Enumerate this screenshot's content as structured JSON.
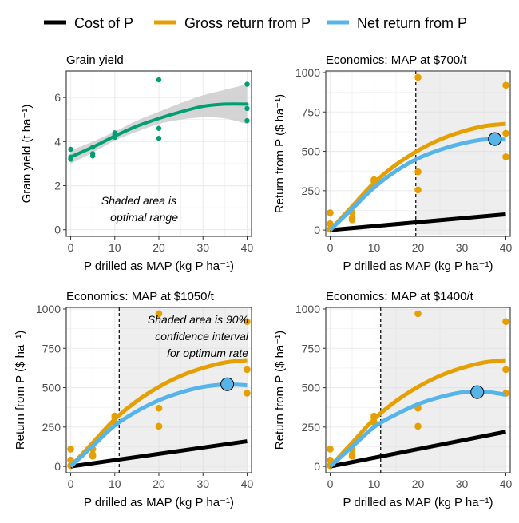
{
  "legend": {
    "items": [
      {
        "label": "Cost of P",
        "color": "#000000"
      },
      {
        "label": "Gross return from P",
        "color": "#E69F00"
      },
      {
        "label": "Net return from P",
        "color": "#56B4E9"
      }
    ]
  },
  "colors": {
    "cost": "#000000",
    "gross": "#E69F00",
    "net": "#56B4E9",
    "yield": "#009E73",
    "ribbon": "#cccccc",
    "panel_grid": "#ebebeb",
    "shade": "#d9d9d9"
  },
  "chart_data": [
    {
      "type": "scatter",
      "title": "Grain yield",
      "xlabel": "P drilled as MAP (kg P ha⁻¹)",
      "ylabel": "Grain yield (t ha⁻¹)",
      "xlim": [
        -1,
        41
      ],
      "ylim": [
        -0.3,
        7.2
      ],
      "xticks": [
        0,
        10,
        20,
        30,
        40
      ],
      "yticks": [
        0,
        2,
        4,
        6
      ],
      "grid": true,
      "points": {
        "x": [
          0,
          0,
          0,
          5,
          5,
          5,
          10,
          10,
          10,
          20,
          20,
          20,
          40,
          40,
          40
        ],
        "y": [
          3.65,
          3.3,
          3.2,
          3.75,
          3.45,
          3.35,
          4.4,
          4.3,
          4.2,
          6.8,
          4.6,
          4.15,
          6.6,
          5.5,
          4.95
        ]
      },
      "fit": {
        "x": [
          0,
          5,
          10,
          15,
          20,
          25,
          30,
          35,
          40
        ],
        "y": [
          3.3,
          3.75,
          4.25,
          4.7,
          5.05,
          5.35,
          5.6,
          5.7,
          5.7
        ]
      },
      "ribbon": {
        "x": [
          0,
          5,
          10,
          15,
          20,
          25,
          30,
          35,
          40
        ],
        "lower": [
          3.0,
          3.5,
          4.05,
          4.45,
          4.8,
          5.0,
          5.1,
          5.05,
          4.8
        ],
        "upper": [
          3.6,
          4.0,
          4.45,
          4.95,
          5.35,
          5.75,
          6.1,
          6.35,
          6.6
        ]
      },
      "annotation": [
        "Shaded area is",
        "optimal range"
      ]
    },
    {
      "type": "line",
      "title": "Economics: MAP at $700/t",
      "xlabel": "P drilled as MAP (kg P ha⁻¹)",
      "ylabel": "Return from P ($ ha⁻¹)",
      "xlim": [
        -1,
        41
      ],
      "ylim": [
        -40,
        1010
      ],
      "xticks": [
        0,
        10,
        20,
        30,
        40
      ],
      "yticks": [
        0,
        250,
        500,
        750,
        1000
      ],
      "grid": true,
      "shade_range": [
        19.5,
        40
      ],
      "vline": 19.5,
      "gross_points": {
        "x": [
          0,
          0,
          0,
          5,
          5,
          5,
          10,
          10,
          10,
          20,
          20,
          20,
          40,
          40,
          40
        ],
        "y": [
          110,
          40,
          5,
          110,
          75,
          65,
          320,
          310,
          280,
          970,
          370,
          255,
          920,
          615,
          465
        ]
      },
      "series": [
        {
          "name": "Cost of P",
          "x": [
            0,
            40
          ],
          "y": [
            0,
            100
          ]
        },
        {
          "name": "Gross return from P",
          "x": [
            0,
            5,
            10,
            15,
            20,
            25,
            30,
            35,
            40
          ],
          "y": [
            0,
            150,
            300,
            415,
            505,
            575,
            625,
            660,
            675
          ]
        },
        {
          "name": "Net return from P",
          "x": [
            0,
            5,
            10,
            15,
            20,
            25,
            30,
            35,
            40
          ],
          "y": [
            0,
            135,
            270,
            375,
            455,
            510,
            550,
            575,
            575
          ]
        }
      ],
      "optimum": {
        "x": 37.5,
        "y": 578
      }
    },
    {
      "type": "line",
      "title": "Economics: MAP at $1050/t",
      "xlabel": "P drilled as MAP (kg P ha⁻¹)",
      "ylabel": "Return from P ($ ha⁻¹)",
      "xlim": [
        -1,
        41
      ],
      "ylim": [
        -40,
        1010
      ],
      "xticks": [
        0,
        10,
        20,
        30,
        40
      ],
      "yticks": [
        0,
        250,
        500,
        750,
        1000
      ],
      "grid": true,
      "shade_range": [
        11,
        40
      ],
      "vline": 11,
      "gross_points": {
        "x": [
          0,
          0,
          0,
          5,
          5,
          5,
          10,
          10,
          10,
          20,
          20,
          20,
          40,
          40,
          40
        ],
        "y": [
          110,
          40,
          5,
          110,
          75,
          65,
          320,
          310,
          280,
          970,
          370,
          255,
          920,
          615,
          465
        ]
      },
      "series": [
        {
          "name": "Cost of P",
          "x": [
            0,
            40
          ],
          "y": [
            0,
            160
          ]
        },
        {
          "name": "Gross return from P",
          "x": [
            0,
            5,
            10,
            15,
            20,
            25,
            30,
            35,
            40
          ],
          "y": [
            0,
            150,
            300,
            415,
            505,
            575,
            625,
            660,
            675
          ]
        },
        {
          "name": "Net return from P",
          "x": [
            0,
            5,
            10,
            15,
            20,
            25,
            30,
            35,
            40
          ],
          "y": [
            0,
            130,
            260,
            350,
            420,
            470,
            505,
            520,
            515
          ]
        }
      ],
      "optimum": {
        "x": 35.5,
        "y": 522
      },
      "annotation": [
        "Shaded area is 90%",
        "confidence interval",
        "for optimum rate"
      ]
    },
    {
      "type": "line",
      "title": "Economics: MAP at $1400/t",
      "xlabel": "P drilled as MAP (kg P ha⁻¹)",
      "ylabel": "Return from P ($ ha⁻¹)",
      "xlim": [
        -1,
        41
      ],
      "ylim": [
        -40,
        1010
      ],
      "xticks": [
        0,
        10,
        20,
        30,
        40
      ],
      "yticks": [
        0,
        250,
        500,
        750,
        1000
      ],
      "grid": true,
      "shade_range": [
        11.5,
        40
      ],
      "vline": 11.5,
      "gross_points": {
        "x": [
          0,
          0,
          0,
          5,
          5,
          5,
          10,
          10,
          10,
          20,
          20,
          20,
          40,
          40,
          40
        ],
        "y": [
          110,
          40,
          5,
          110,
          75,
          65,
          320,
          310,
          280,
          970,
          370,
          255,
          920,
          615,
          465
        ]
      },
      "series": [
        {
          "name": "Cost of P",
          "x": [
            0,
            40
          ],
          "y": [
            0,
            220
          ]
        },
        {
          "name": "Gross return from P",
          "x": [
            0,
            5,
            10,
            15,
            20,
            25,
            30,
            35,
            40
          ],
          "y": [
            0,
            150,
            300,
            415,
            505,
            575,
            625,
            660,
            675
          ]
        },
        {
          "name": "Net return from P",
          "x": [
            0,
            5,
            10,
            15,
            20,
            25,
            30,
            35,
            40
          ],
          "y": [
            0,
            125,
            250,
            330,
            395,
            440,
            470,
            475,
            455
          ]
        }
      ],
      "optimum": {
        "x": 33.5,
        "y": 472
      }
    }
  ]
}
